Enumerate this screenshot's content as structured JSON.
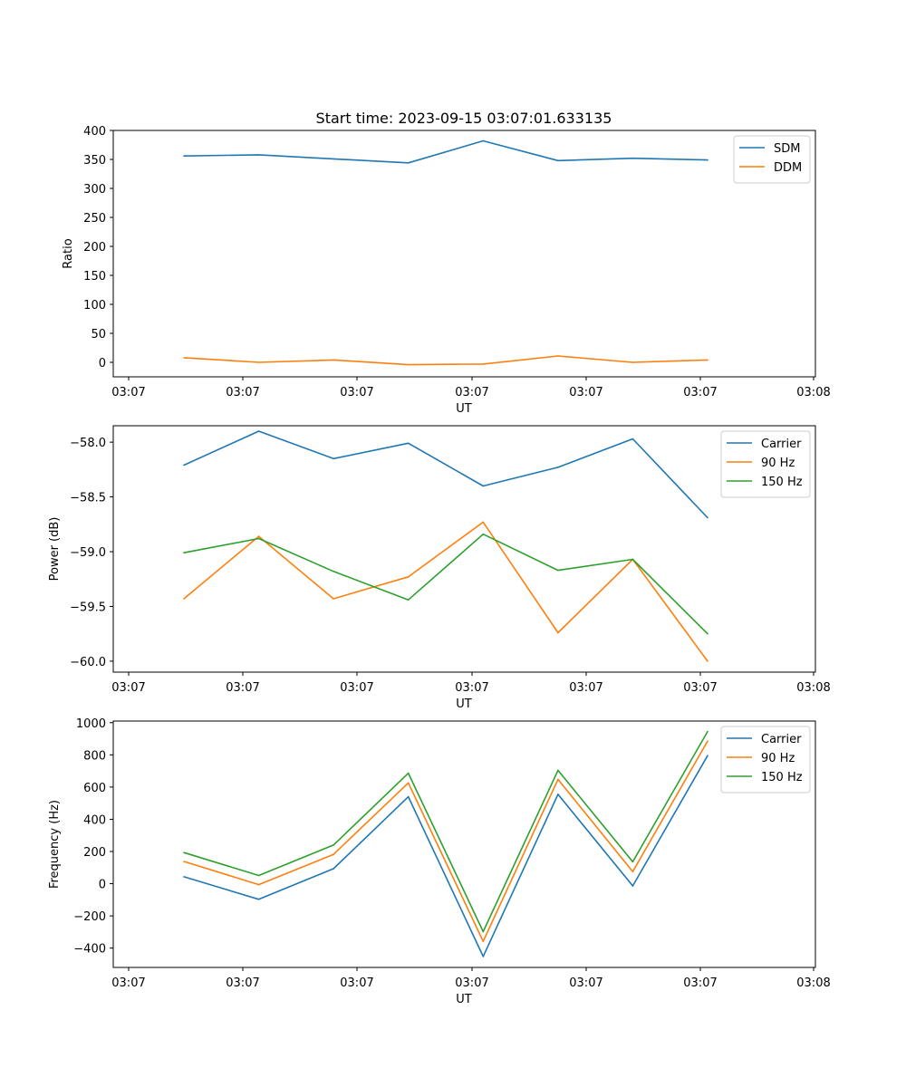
{
  "figure": {
    "title": "Start time: 2023-09-15 03:07:01.633135"
  },
  "chart_data": [
    {
      "type": "line",
      "name": "ratio",
      "title": "Start time: 2023-09-15 03:07:01.633135",
      "xlabel": "UT",
      "ylabel": "Ratio",
      "xticks": [
        "03:07",
        "03:07",
        "03:07",
        "03:07",
        "03:07",
        "03:07",
        "03:08"
      ],
      "xlim": [
        0,
        8.7
      ],
      "x": [
        1,
        2,
        3,
        4,
        5,
        6,
        7,
        8
      ],
      "ylim": [
        -25,
        400
      ],
      "yticks": [
        0,
        50,
        100,
        150,
        200,
        250,
        300,
        350,
        400
      ],
      "ytick_labels": [
        "0",
        "50",
        "100",
        "150",
        "200",
        "250",
        "300",
        "350",
        "400"
      ],
      "legend": "top-right",
      "series": [
        {
          "name": "SDM",
          "color": "#1f77b4",
          "values": [
            356,
            358,
            351,
            344,
            382,
            348,
            352,
            349
          ]
        },
        {
          "name": "DDM",
          "color": "#ff7f0e",
          "values": [
            8,
            0,
            4,
            -4,
            -3,
            11,
            0,
            4
          ]
        }
      ]
    },
    {
      "type": "line",
      "name": "power",
      "title": "",
      "xlabel": "UT",
      "ylabel": "Power (dB)",
      "xticks": [
        "03:07",
        "03:07",
        "03:07",
        "03:07",
        "03:07",
        "03:07",
        "03:08"
      ],
      "xlim": [
        0,
        8.7
      ],
      "x": [
        1,
        2,
        3,
        4,
        5,
        6,
        7,
        8
      ],
      "ylim": [
        -60.1,
        -57.85
      ],
      "yticks": [
        -60.0,
        -59.5,
        -59.0,
        -58.5,
        -58.0
      ],
      "ytick_labels": [
        "−60.0",
        "−59.5",
        "−59.0",
        "−58.5",
        "−58.0"
      ],
      "legend": "top-right",
      "series": [
        {
          "name": "Carrier",
          "color": "#1f77b4",
          "values": [
            -58.21,
            -57.9,
            -58.15,
            -58.01,
            -58.4,
            -58.23,
            -57.97,
            -58.69
          ]
        },
        {
          "name": "90 Hz",
          "color": "#ff7f0e",
          "values": [
            -59.43,
            -58.86,
            -59.43,
            -59.23,
            -58.73,
            -59.74,
            -59.07,
            -60.0
          ]
        },
        {
          "name": "150 Hz",
          "color": "#2ca02c",
          "values": [
            -59.01,
            -58.88,
            -59.18,
            -59.44,
            -58.84,
            -59.17,
            -59.07,
            -59.75
          ]
        }
      ]
    },
    {
      "type": "line",
      "name": "frequency",
      "title": "",
      "xlabel": "UT",
      "ylabel": "Frequency (Hz)",
      "xticks": [
        "03:07",
        "03:07",
        "03:07",
        "03:07",
        "03:07",
        "03:07",
        "03:08"
      ],
      "xlim": [
        0,
        8.7
      ],
      "x": [
        1,
        2,
        3,
        4,
        5,
        6,
        7,
        8
      ],
      "ylim": [
        -520,
        1010
      ],
      "yticks": [
        -400,
        -200,
        0,
        200,
        400,
        600,
        800,
        1000
      ],
      "ytick_labels": [
        "−400",
        "−200",
        "0",
        "200",
        "400",
        "600",
        "800",
        "1000"
      ],
      "legend": "top-right",
      "series": [
        {
          "name": "Carrier",
          "color": "#1f77b4",
          "values": [
            43,
            -97,
            93,
            540,
            -452,
            555,
            -14,
            795
          ]
        },
        {
          "name": "90 Hz",
          "color": "#ff7f0e",
          "values": [
            138,
            -6,
            182,
            626,
            -358,
            648,
            75,
            885
          ]
        },
        {
          "name": "150 Hz",
          "color": "#2ca02c",
          "values": [
            193,
            51,
            240,
            686,
            -298,
            704,
            136,
            945
          ]
        }
      ]
    }
  ]
}
